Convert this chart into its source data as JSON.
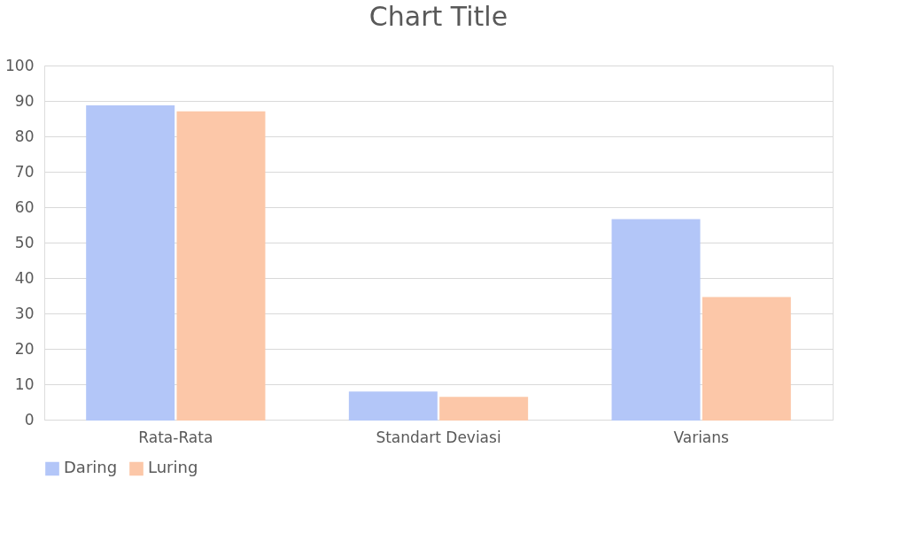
{
  "chart_data": {
    "type": "bar",
    "title": "Chart Title",
    "categories": [
      "Rata-Rata",
      "Standart Deviasi",
      "Varians"
    ],
    "series": [
      {
        "name": "Daring",
        "color": "#b3c6f8",
        "values": [
          88.5,
          7.7,
          56.4
        ]
      },
      {
        "name": "Luring",
        "color": "#fcc7a8",
        "values": [
          86.8,
          6.2,
          34.4
        ]
      }
    ],
    "ylim": [
      0,
      100
    ],
    "yticks": [
      0,
      10,
      20,
      30,
      40,
      50,
      60,
      70,
      80,
      90,
      100
    ],
    "grid": "y",
    "legend": "bottom"
  }
}
